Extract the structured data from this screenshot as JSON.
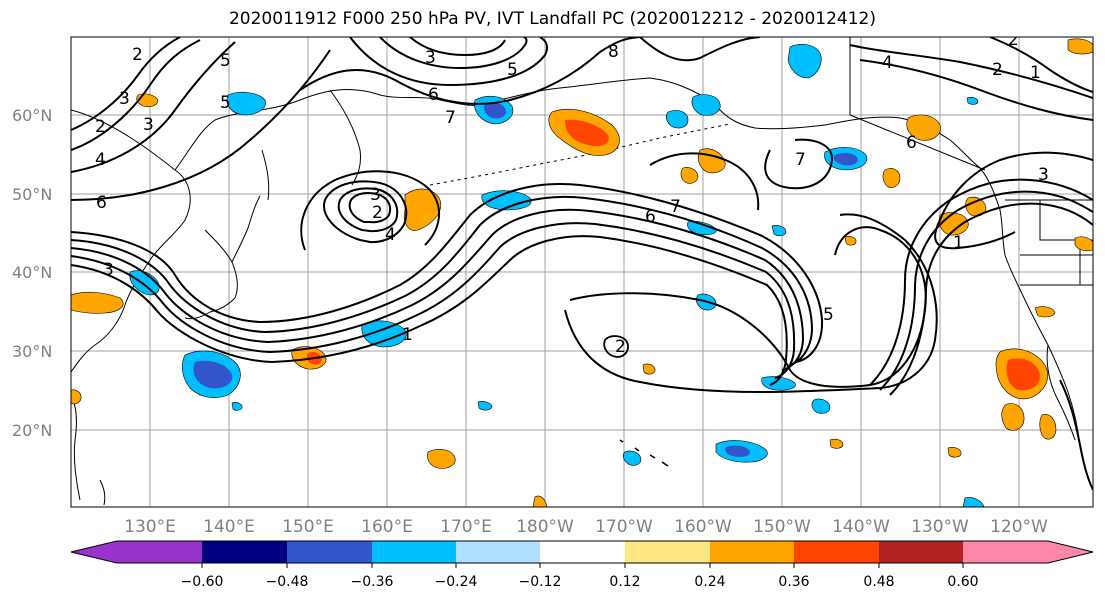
{
  "title": "2020011912 F000 250 hPa PV, IVT Landfall PC (2020012212 - 2020012412)",
  "lat_labels": [
    "60°N",
    "50°N",
    "40°N",
    "30°N",
    "20°N"
  ],
  "lon_labels": [
    "130°E",
    "140°E",
    "150°E",
    "160°E",
    "170°E",
    "180°W",
    "170°W",
    "160°W",
    "150°W",
    "140°W",
    "130°W",
    "120°W"
  ],
  "colorbar": {
    "tick_labels": [
      "−0.60",
      "−0.48",
      "−0.36",
      "−0.24",
      "−0.12",
      "0.12",
      "0.24",
      "0.36",
      "0.48",
      "0.60"
    ],
    "colors": [
      "#9933cc",
      "#000080",
      "#3355cc",
      "#00bfff",
      "#b0e0ff",
      "#ffffff",
      "#ffe680",
      "#ffa500",
      "#ff4500",
      "#b22222",
      "#ff88aa"
    ]
  },
  "contour_labels": [
    "2",
    "3",
    "2",
    "3",
    "4",
    "5",
    "6",
    "8",
    "4",
    "2",
    "1",
    "3",
    "6",
    "5",
    "7",
    "2",
    "6",
    "7",
    "6",
    "7",
    "1",
    "5",
    "2",
    "1",
    "3",
    "2",
    "3",
    "5",
    "4",
    "3"
  ],
  "colors": {
    "positive_fill": "#ffa500",
    "positive_core": "#ff4500",
    "negative_fill": "#00bfff",
    "negative_core": "#3355cc",
    "gridline": "#a0a0a0",
    "contour": "#000000"
  }
}
